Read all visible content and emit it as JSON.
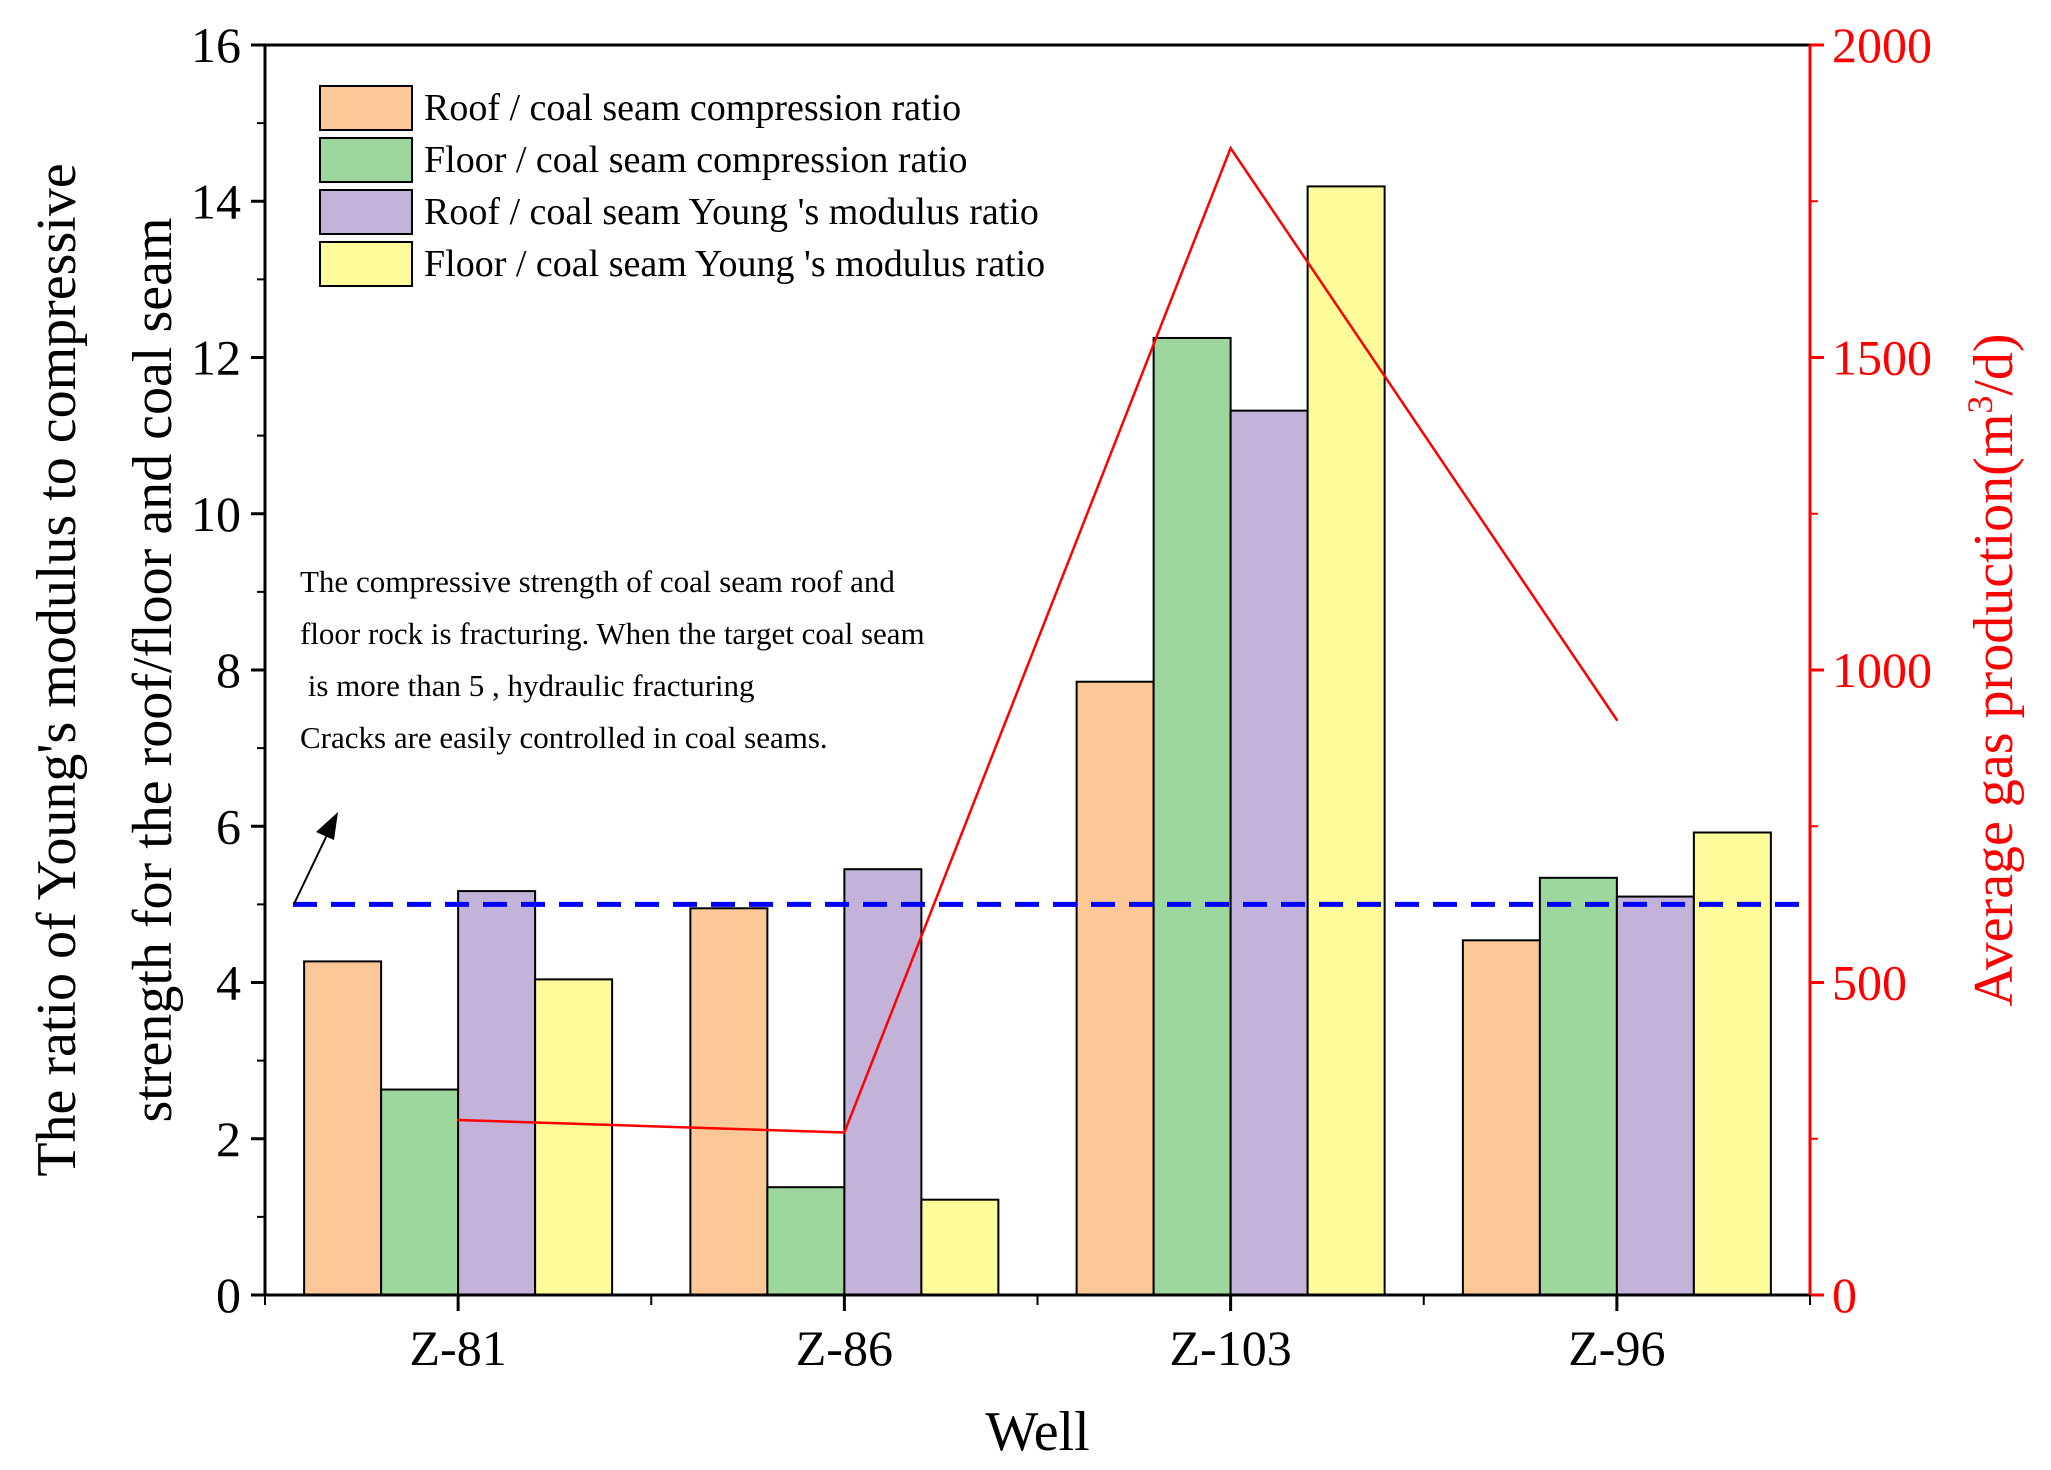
{
  "chart_data": {
    "type": "bar",
    "xlabel": "Well",
    "ylabel_lines": [
      "The ratio of Young's modulus to compressive",
      "strength for the roof/floor and coal seam"
    ],
    "y2label_main": "Average gas production(m",
    "y2label_sup": "3",
    "y2label_end": "/d)",
    "categories": [
      "Z-81",
      "Z-86",
      "Z-103",
      "Z-96"
    ],
    "ylim": [
      0,
      16
    ],
    "yticks": [
      0,
      2,
      4,
      6,
      8,
      10,
      12,
      14,
      16
    ],
    "y2lim": [
      0,
      2000
    ],
    "y2ticks": [
      0,
      500,
      1000,
      1500,
      2000
    ],
    "series": [
      {
        "name": "Roof / coal seam compression ratio",
        "color": "#fdc897",
        "values": [
          4.27,
          4.95,
          7.85,
          4.54
        ]
      },
      {
        "name": "Floor / coal seam compression ratio",
        "color": "#9ed79e",
        "values": [
          2.63,
          1.38,
          12.25,
          5.34
        ]
      },
      {
        "name": "Roof / coal seam Young 's modulus ratio",
        "color": "#c3b3d8",
        "values": [
          5.17,
          5.45,
          11.32,
          5.1
        ]
      },
      {
        "name": "Floor / coal seam Young 's modulus ratio",
        "color": "#fefc9a",
        "values": [
          4.04,
          1.22,
          14.19,
          5.92
        ]
      }
    ],
    "line_series": {
      "axis": "right",
      "color": "#ff0000",
      "values": [
        280,
        260,
        1835,
        920
      ]
    },
    "threshold": {
      "value": 5,
      "color": "#0000ff",
      "style": "dashed"
    },
    "annotation_lines": [
      "The compressive strength of coal seam roof and",
      "floor rock is fracturing. When the target coal seam",
      " is more than 5 , hydraulic fracturing",
      "Cracks are easily controlled in coal seams."
    ],
    "legend_position": "top-left",
    "grid": false
  }
}
